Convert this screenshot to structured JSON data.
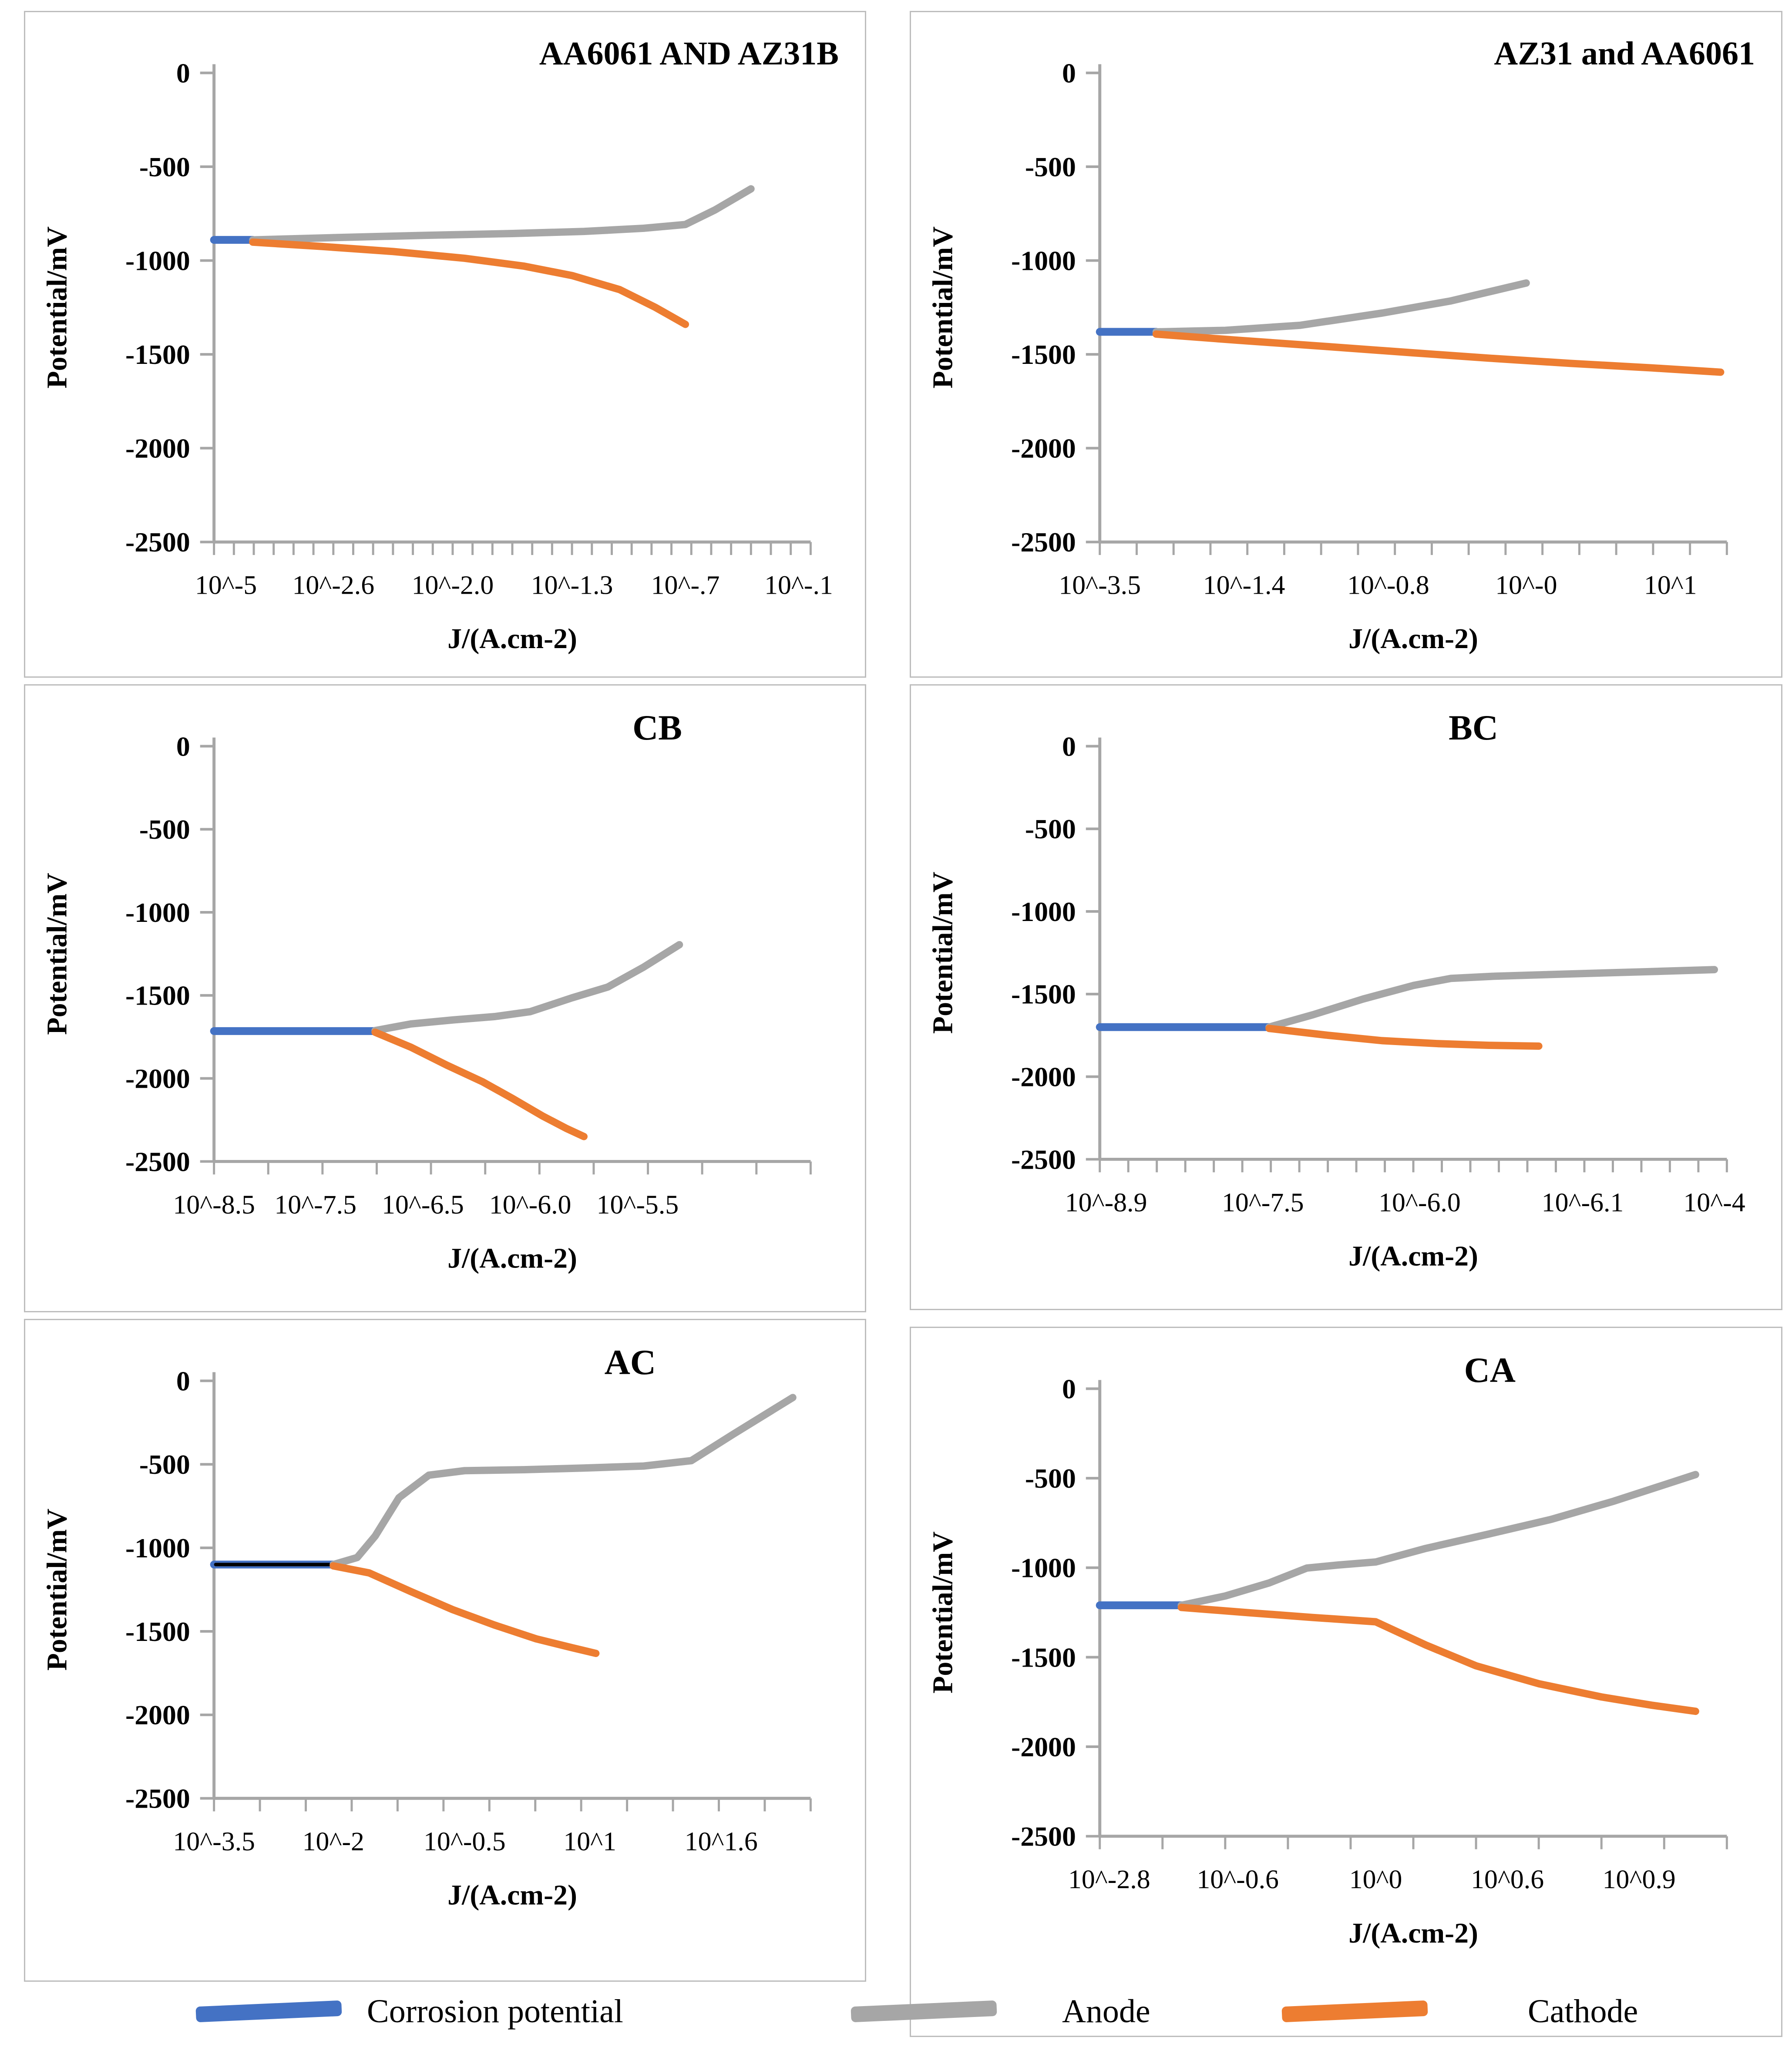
{
  "legend": {
    "items": [
      {
        "label": "Corrosion potential",
        "color": "#4472C4"
      },
      {
        "label": "Anode",
        "color": "#A6A6A6"
      },
      {
        "label": "Cathode",
        "color": "#ED7D31"
      }
    ]
  },
  "colors": {
    "corrosion_potential": "#4472C4",
    "anode": "#A6A6A6",
    "cathode": "#ED7D31",
    "axis": "#a6a6a6",
    "text": "#000000",
    "ac_corrosion_core": "#000000"
  },
  "chart_data": [
    {
      "type": "line",
      "title": "AA6061 AND AZ31B",
      "xlabel": "J/(A.cm-2)",
      "ylabel": "Potential/mV",
      "ylim": [
        0,
        -2500
      ],
      "y_ticks": [
        0,
        -500,
        -1000,
        -1500,
        -2000,
        -2500
      ],
      "x_ticks": [
        {
          "label": "10^-5",
          "pos": 0.02
        },
        {
          "label": "10^-2.6",
          "pos": 0.2
        },
        {
          "label": "10^-2.0",
          "pos": 0.4
        },
        {
          "label": "10^-1.3",
          "pos": 0.6
        },
        {
          "label": "10^-.7",
          "pos": 0.79
        },
        {
          "label": "10^-.1",
          "pos": 0.98
        }
      ],
      "minor_tick_count": 30,
      "corrosion_potential_mV": -890,
      "corrosion_line": {
        "x_start": 0.0,
        "x_end": 0.065,
        "black_core": false
      },
      "series": [
        {
          "name": "Anode",
          "points": [
            [
              0.065,
              -890
            ],
            [
              0.2,
              -878
            ],
            [
              0.35,
              -866
            ],
            [
              0.5,
              -856
            ],
            [
              0.62,
              -845
            ],
            [
              0.72,
              -828
            ],
            [
              0.79,
              -808
            ],
            [
              0.84,
              -730
            ],
            [
              0.9,
              -618
            ]
          ]
        },
        {
          "name": "Cathode",
          "points": [
            [
              0.065,
              -902
            ],
            [
              0.18,
              -925
            ],
            [
              0.3,
              -952
            ],
            [
              0.42,
              -988
            ],
            [
              0.52,
              -1030
            ],
            [
              0.6,
              -1080
            ],
            [
              0.68,
              -1155
            ],
            [
              0.74,
              -1250
            ],
            [
              0.79,
              -1340
            ]
          ]
        }
      ]
    },
    {
      "type": "line",
      "title": "AZ31 and AA6061",
      "xlabel": "J/(A.cm-2)",
      "ylabel": "Potential/mV",
      "ylim": [
        0,
        -2500
      ],
      "y_ticks": [
        0,
        -500,
        -1000,
        -1500,
        -2000,
        -2500
      ],
      "x_ticks": [
        {
          "label": "10^-3.5",
          "pos": 0.0
        },
        {
          "label": "10^-1.4",
          "pos": 0.23
        },
        {
          "label": "10^-0.8",
          "pos": 0.46
        },
        {
          "label": "10^-0",
          "pos": 0.68
        },
        {
          "label": "10^1",
          "pos": 0.91
        }
      ],
      "minor_tick_count": 17,
      "corrosion_potential_mV": -1380,
      "corrosion_line": {
        "x_start": 0.0,
        "x_end": 0.09,
        "black_core": false
      },
      "series": [
        {
          "name": "Anode",
          "points": [
            [
              0.09,
              -1380
            ],
            [
              0.2,
              -1372
            ],
            [
              0.32,
              -1345
            ],
            [
              0.45,
              -1280
            ],
            [
              0.56,
              -1215
            ],
            [
              0.68,
              -1120
            ]
          ]
        },
        {
          "name": "Cathode",
          "points": [
            [
              0.09,
              -1392
            ],
            [
              0.22,
              -1425
            ],
            [
              0.36,
              -1458
            ],
            [
              0.5,
              -1492
            ],
            [
              0.62,
              -1520
            ],
            [
              0.75,
              -1548
            ],
            [
              0.88,
              -1572
            ],
            [
              0.99,
              -1595
            ]
          ]
        }
      ]
    },
    {
      "type": "line",
      "title": "CB",
      "xlabel": "J/(A.cm-2)",
      "ylabel": "Potential/mV",
      "ylim": [
        0,
        -2500
      ],
      "y_ticks": [
        0,
        -500,
        -1000,
        -1500,
        -2000,
        -2500
      ],
      "x_ticks": [
        {
          "label": "10^-8.5",
          "pos": 0.0
        },
        {
          "label": "10^-7.5",
          "pos": 0.17
        },
        {
          "label": "10^-6.5",
          "pos": 0.35
        },
        {
          "label": "10^-6.0",
          "pos": 0.53
        },
        {
          "label": "10^-5.5",
          "pos": 0.71
        }
      ],
      "minor_tick_count": 11,
      "corrosion_potential_mV": -1715,
      "corrosion_line": {
        "x_start": 0.0,
        "x_end": 0.27,
        "black_core": false
      },
      "series": [
        {
          "name": "Anode",
          "points": [
            [
              0.27,
              -1712
            ],
            [
              0.33,
              -1672
            ],
            [
              0.4,
              -1648
            ],
            [
              0.47,
              -1628
            ],
            [
              0.53,
              -1598
            ],
            [
              0.6,
              -1515
            ],
            [
              0.66,
              -1450
            ],
            [
              0.72,
              -1330
            ],
            [
              0.78,
              -1195
            ]
          ]
        },
        {
          "name": "Cathode",
          "points": [
            [
              0.27,
              -1722
            ],
            [
              0.33,
              -1812
            ],
            [
              0.39,
              -1920
            ],
            [
              0.45,
              -2020
            ],
            [
              0.5,
              -2120
            ],
            [
              0.55,
              -2225
            ],
            [
              0.59,
              -2300
            ],
            [
              0.62,
              -2350
            ]
          ]
        }
      ]
    },
    {
      "type": "line",
      "title": "BC",
      "xlabel": "J/(A.cm-2)",
      "ylabel": "Potential/mV",
      "ylim": [
        0,
        -2500
      ],
      "y_ticks": [
        0,
        -500,
        -1000,
        -1500,
        -2000,
        -2500
      ],
      "x_ticks": [
        {
          "label": "10^-8.9",
          "pos": 0.01
        },
        {
          "label": "10^-7.5",
          "pos": 0.26
        },
        {
          "label": "10^-6.0",
          "pos": 0.51
        },
        {
          "label": "10^-6.1",
          "pos": 0.77
        },
        {
          "label": "10^-4",
          "pos": 0.98
        }
      ],
      "minor_tick_count": 22,
      "corrosion_potential_mV": -1700,
      "corrosion_line": {
        "x_start": 0.0,
        "x_end": 0.27,
        "black_core": false
      },
      "series": [
        {
          "name": "Anode",
          "points": [
            [
              0.27,
              -1700
            ],
            [
              0.34,
              -1625
            ],
            [
              0.42,
              -1530
            ],
            [
              0.5,
              -1448
            ],
            [
              0.56,
              -1405
            ],
            [
              0.63,
              -1392
            ],
            [
              0.75,
              -1378
            ],
            [
              0.87,
              -1365
            ],
            [
              0.98,
              -1352
            ]
          ]
        },
        {
          "name": "Cathode",
          "points": [
            [
              0.27,
              -1708
            ],
            [
              0.36,
              -1748
            ],
            [
              0.45,
              -1782
            ],
            [
              0.54,
              -1800
            ],
            [
              0.62,
              -1810
            ],
            [
              0.7,
              -1815
            ]
          ]
        }
      ]
    },
    {
      "type": "line",
      "title": "AC",
      "xlabel": "J/(A.cm-2)",
      "ylabel": "Potential/mV",
      "ylim": [
        0,
        -2500
      ],
      "y_ticks": [
        0,
        -500,
        -1000,
        -1500,
        -2000,
        -2500
      ],
      "x_ticks": [
        {
          "label": "10^-3.5",
          "pos": 0.0
        },
        {
          "label": "10^-2",
          "pos": 0.2
        },
        {
          "label": "10^-0.5",
          "pos": 0.42
        },
        {
          "label": "10^1",
          "pos": 0.63
        },
        {
          "label": "10^1.6",
          "pos": 0.85
        }
      ],
      "minor_tick_count": 13,
      "corrosion_potential_mV": -1100,
      "corrosion_line": {
        "x_start": 0.0,
        "x_end": 0.2,
        "black_core": true
      },
      "series": [
        {
          "name": "Anode",
          "points": [
            [
              0.2,
              -1100
            ],
            [
              0.24,
              -1058
            ],
            [
              0.27,
              -930
            ],
            [
              0.31,
              -700
            ],
            [
              0.36,
              -565
            ],
            [
              0.42,
              -538
            ],
            [
              0.52,
              -532
            ],
            [
              0.62,
              -522
            ],
            [
              0.72,
              -510
            ],
            [
              0.8,
              -478
            ],
            [
              0.87,
              -320
            ],
            [
              0.97,
              -100
            ]
          ]
        },
        {
          "name": "Cathode",
          "points": [
            [
              0.2,
              -1108
            ],
            [
              0.26,
              -1150
            ],
            [
              0.33,
              -1262
            ],
            [
              0.4,
              -1370
            ],
            [
              0.47,
              -1462
            ],
            [
              0.54,
              -1545
            ],
            [
              0.6,
              -1598
            ],
            [
              0.64,
              -1632
            ]
          ]
        }
      ]
    },
    {
      "type": "line",
      "title": "CA",
      "xlabel": "J/(A.cm-2)",
      "ylabel": "Potential/mV",
      "ylim": [
        0,
        -2500
      ],
      "y_ticks": [
        0,
        -500,
        -1000,
        -1500,
        -2000,
        -2500
      ],
      "x_ticks": [
        {
          "label": "10^-2.8",
          "pos": 0.015
        },
        {
          "label": "10^-0.6",
          "pos": 0.22
        },
        {
          "label": "10^0",
          "pos": 0.44
        },
        {
          "label": "10^0.6",
          "pos": 0.65
        },
        {
          "label": "10^0.9",
          "pos": 0.86
        }
      ],
      "minor_tick_count": 10,
      "corrosion_potential_mV": -1210,
      "corrosion_line": {
        "x_start": 0.0,
        "x_end": 0.13,
        "black_core": false
      },
      "series": [
        {
          "name": "Anode",
          "points": [
            [
              0.13,
              -1210
            ],
            [
              0.2,
              -1158
            ],
            [
              0.27,
              -1085
            ],
            [
              0.33,
              -1002
            ],
            [
              0.38,
              -985
            ],
            [
              0.44,
              -968
            ],
            [
              0.52,
              -892
            ],
            [
              0.62,
              -812
            ],
            [
              0.72,
              -730
            ],
            [
              0.82,
              -628
            ],
            [
              0.95,
              -480
            ]
          ]
        },
        {
          "name": "Cathode",
          "points": [
            [
              0.13,
              -1222
            ],
            [
              0.24,
              -1252
            ],
            [
              0.34,
              -1278
            ],
            [
              0.44,
              -1302
            ],
            [
              0.52,
              -1432
            ],
            [
              0.6,
              -1548
            ],
            [
              0.7,
              -1648
            ],
            [
              0.8,
              -1722
            ],
            [
              0.88,
              -1768
            ],
            [
              0.95,
              -1802
            ]
          ]
        }
      ]
    }
  ]
}
